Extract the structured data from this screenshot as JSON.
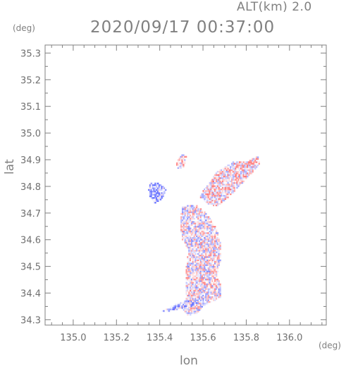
{
  "header": {
    "altitude_label": "ALT(km) 2.0",
    "timestamp": "2020/09/17 00:37:00"
  },
  "chart_data": {
    "type": "scatter",
    "title": "2020/09/17 00:37:00",
    "subtitle": "ALT(km) 2.0",
    "xlabel": "lon",
    "ylabel": "lat",
    "x_unit": "(deg)",
    "y_unit": "(deg)",
    "xlim": [
      134.87,
      136.17
    ],
    "ylim": [
      34.28,
      35.33
    ],
    "xticks": [
      135.0,
      135.2,
      135.4,
      135.6,
      135.8,
      136.0
    ],
    "xtick_labels": [
      "135.0",
      "135.2",
      "135.4",
      "135.6",
      "135.8",
      "136.0"
    ],
    "yticks": [
      34.3,
      34.4,
      34.5,
      34.6,
      34.7,
      34.8,
      34.9,
      35.0,
      35.1,
      35.2,
      35.3
    ],
    "ytick_labels": [
      "34.3",
      "34.4",
      "34.5",
      "34.6",
      "34.7",
      "34.8",
      "34.9",
      "35.0",
      "35.1",
      "35.2",
      "35.3"
    ],
    "grid": false,
    "legend": "none",
    "colors": {
      "positive": "#e8706f",
      "negative": "#6f78e8",
      "neutral": "#c8c8ee",
      "axis": "#808080"
    },
    "regions": [
      {
        "name": "",
        "polygon": [
          [
            135.53,
            34.31
          ],
          [
            135.57,
            34.32
          ],
          [
            135.6,
            34.35
          ],
          [
            135.68,
            34.38
          ],
          [
            135.68,
            34.43
          ],
          [
            135.66,
            34.46
          ],
          [
            135.68,
            34.52
          ],
          [
            135.68,
            34.58
          ],
          [
            135.66,
            34.64
          ],
          [
            135.62,
            34.69
          ],
          [
            135.56,
            34.73
          ],
          [
            135.5,
            34.72
          ],
          [
            135.49,
            34.66
          ],
          [
            135.5,
            34.6
          ],
          [
            135.53,
            34.56
          ],
          [
            135.52,
            34.5
          ],
          [
            135.52,
            34.44
          ],
          [
            135.52,
            34.38
          ],
          [
            135.5,
            34.34
          ]
        ],
        "mean": 0.0
      },
      {
        "name": "",
        "polygon": [
          [
            135.58,
            34.76
          ],
          [
            135.66,
            34.85
          ],
          [
            135.74,
            34.89
          ],
          [
            135.8,
            34.89
          ],
          [
            135.85,
            34.91
          ],
          [
            135.86,
            34.88
          ],
          [
            135.79,
            34.82
          ],
          [
            135.72,
            34.76
          ],
          [
            135.66,
            34.72
          ],
          [
            135.62,
            34.73
          ]
        ],
        "mean": 0.15
      },
      {
        "name": "",
        "polygon": [
          [
            135.34,
            34.81
          ],
          [
            135.39,
            34.81
          ],
          [
            135.43,
            34.79
          ],
          [
            135.41,
            34.75
          ],
          [
            135.37,
            34.73
          ],
          [
            135.35,
            34.76
          ]
        ],
        "mean": -0.5
      },
      {
        "name": "",
        "polygon": [
          [
            135.47,
            34.88
          ],
          [
            135.5,
            34.92
          ],
          [
            135.52,
            34.91
          ],
          [
            135.51,
            34.87
          ],
          [
            135.48,
            34.86
          ]
        ],
        "mean": 0.1
      },
      {
        "name": "",
        "polygon": [
          [
            135.41,
            34.33
          ],
          [
            135.48,
            34.36
          ],
          [
            135.53,
            34.37
          ],
          [
            135.58,
            34.36
          ],
          [
            135.52,
            34.34
          ],
          [
            135.45,
            34.33
          ]
        ],
        "mean": -0.4
      }
    ]
  }
}
